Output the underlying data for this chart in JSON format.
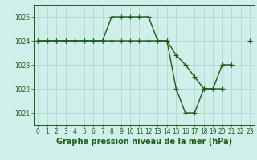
{
  "title": "Graphe pression niveau de la mer (hPa)",
  "background_color": "#d0eeea",
  "grid_color": "#b0d8d2",
  "line_color": "#1a5c1a",
  "x_hours": [
    0,
    1,
    2,
    3,
    4,
    5,
    6,
    7,
    8,
    9,
    10,
    11,
    12,
    13,
    14,
    15,
    16,
    17,
    18,
    19,
    20,
    21,
    22,
    23
  ],
  "series1": [
    1024.0,
    1024.0,
    1024.0,
    1024.0,
    1024.0,
    1024.0,
    1024.0,
    1024.0,
    1025.0,
    1025.0,
    1025.0,
    1025.0,
    1025.0,
    1024.0,
    1024.0,
    1022.0,
    1021.0,
    1021.0,
    1022.0,
    1022.0,
    1023.0,
    1023.0,
    null,
    1024.0
  ],
  "series2": [
    1024.0,
    null,
    1024.0,
    1024.0,
    1024.0,
    1024.0,
    1024.0,
    1024.0,
    1024.0,
    1024.0,
    1024.0,
    1024.0,
    1024.0,
    1024.0,
    1024.0,
    1023.4,
    1023.0,
    1022.5,
    1022.0,
    1022.0,
    1022.0,
    null,
    null,
    null
  ],
  "ylim": [
    1020.5,
    1025.5
  ],
  "yticks": [
    1021,
    1022,
    1023,
    1024,
    1025
  ],
  "xlim": [
    -0.5,
    23.5
  ],
  "marker": "+",
  "markersize": 4,
  "linewidth": 1.0,
  "tick_fontsize": 5.5,
  "label_fontsize": 7.0
}
